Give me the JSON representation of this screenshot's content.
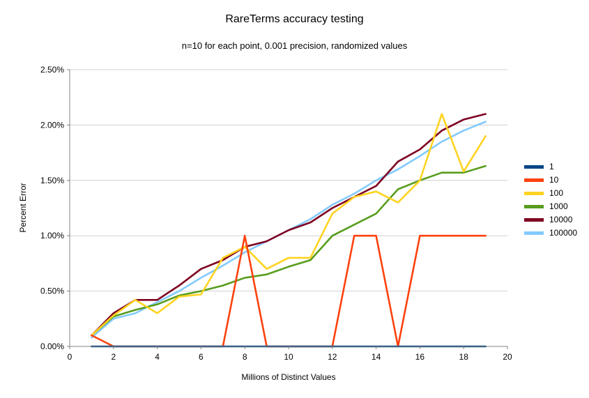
{
  "chart_data": {
    "type": "line",
    "title": "RareTerms accuracy testing",
    "subtitle": "n=10 for each point, 0.001 precision, randomized values",
    "xlabel": "Millions of Distinct Values",
    "ylabel": "Percent Error",
    "xlim": [
      0,
      20
    ],
    "ylim": [
      0,
      2.5
    ],
    "grid": "horizontal",
    "legend_position": "right",
    "x_ticks": [
      0,
      2,
      4,
      6,
      8,
      10,
      12,
      14,
      16,
      18,
      20
    ],
    "x_tick_labels": [
      "0",
      "2",
      "4",
      "6",
      "8",
      "10",
      "12",
      "14",
      "16",
      "18",
      "20"
    ],
    "y_ticks": [
      0,
      0.5,
      1.0,
      1.5,
      2.0,
      2.5
    ],
    "y_tick_labels": [
      "0.00%",
      "0.50%",
      "1.00%",
      "1.50%",
      "2.00%",
      "2.50%"
    ],
    "x": [
      1,
      2,
      3,
      4,
      5,
      6,
      7,
      8,
      9,
      10,
      11,
      12,
      13,
      14,
      15,
      16,
      17,
      18,
      19
    ],
    "series": [
      {
        "name": "1",
        "color": "#004586",
        "values": [
          0,
          0,
          0,
          0,
          0,
          0,
          0,
          0,
          0,
          0,
          0,
          0,
          0,
          0,
          0,
          0,
          0,
          0,
          0
        ]
      },
      {
        "name": "10",
        "color": "#ff420e",
        "values": [
          0.1,
          0,
          0,
          0,
          0,
          0,
          0,
          1.0,
          0,
          0,
          0,
          0,
          1.0,
          1.0,
          0,
          1.0,
          1.0,
          1.0,
          1.0
        ]
      },
      {
        "name": "100",
        "color": "#ffd320",
        "values": [
          0.1,
          0.28,
          0.42,
          0.3,
          0.45,
          0.47,
          0.8,
          0.9,
          0.7,
          0.8,
          0.8,
          1.2,
          1.35,
          1.4,
          1.3,
          1.5,
          2.1,
          1.58,
          1.9
        ]
      },
      {
        "name": "1000",
        "color": "#579d1c",
        "values": [
          0.1,
          0.27,
          0.33,
          0.38,
          0.46,
          0.5,
          0.55,
          0.62,
          0.65,
          0.72,
          0.78,
          1.0,
          1.1,
          1.2,
          1.42,
          1.5,
          1.57,
          1.57,
          1.63
        ]
      },
      {
        "name": "10000",
        "color": "#7e0021",
        "values": [
          0.1,
          0.3,
          0.42,
          0.42,
          0.55,
          0.7,
          0.78,
          0.9,
          0.95,
          1.05,
          1.12,
          1.25,
          1.35,
          1.45,
          1.67,
          1.78,
          1.95,
          2.05,
          2.1
        ]
      },
      {
        "name": "100000",
        "color": "#83caff",
        "values": [
          0.08,
          0.25,
          0.3,
          0.4,
          0.5,
          0.62,
          0.73,
          0.85,
          0.95,
          1.05,
          1.15,
          1.28,
          1.38,
          1.5,
          1.6,
          1.72,
          1.85,
          1.95,
          2.03
        ]
      }
    ],
    "axis_color": "#808080",
    "grid_color": "#d0d0d0",
    "text_color": "#000000"
  }
}
